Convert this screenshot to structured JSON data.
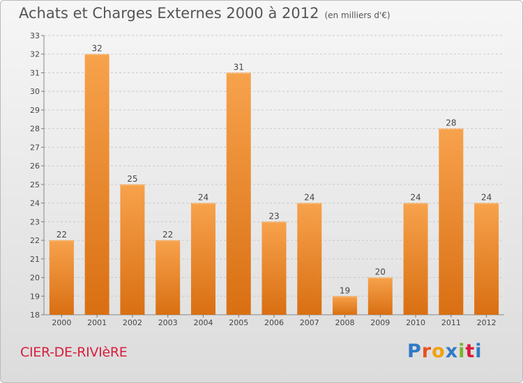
{
  "header": {
    "title": "Achats et Charges Externes 2000 à 2012",
    "subtitle": "(en milliers d'€)"
  },
  "footer": {
    "commune": "CIER-DE-RIVIèRE",
    "logo": "Proxiti"
  },
  "colors": {
    "bar": "#f28a1f",
    "commune_text": "#d81e3c"
  },
  "chart_data": {
    "type": "bar",
    "categories": [
      "2000",
      "2001",
      "2002",
      "2003",
      "2004",
      "2005",
      "2006",
      "2007",
      "2008",
      "2009",
      "2010",
      "2011",
      "2012"
    ],
    "values": [
      22,
      32,
      25,
      22,
      24,
      31,
      23,
      24,
      19,
      20,
      24,
      28,
      24
    ],
    "ylim": [
      18,
      33
    ],
    "yticks": [
      18,
      19,
      20,
      21,
      22,
      23,
      24,
      25,
      26,
      27,
      28,
      29,
      30,
      31,
      32,
      33
    ],
    "grid": true,
    "data_labels": true
  }
}
